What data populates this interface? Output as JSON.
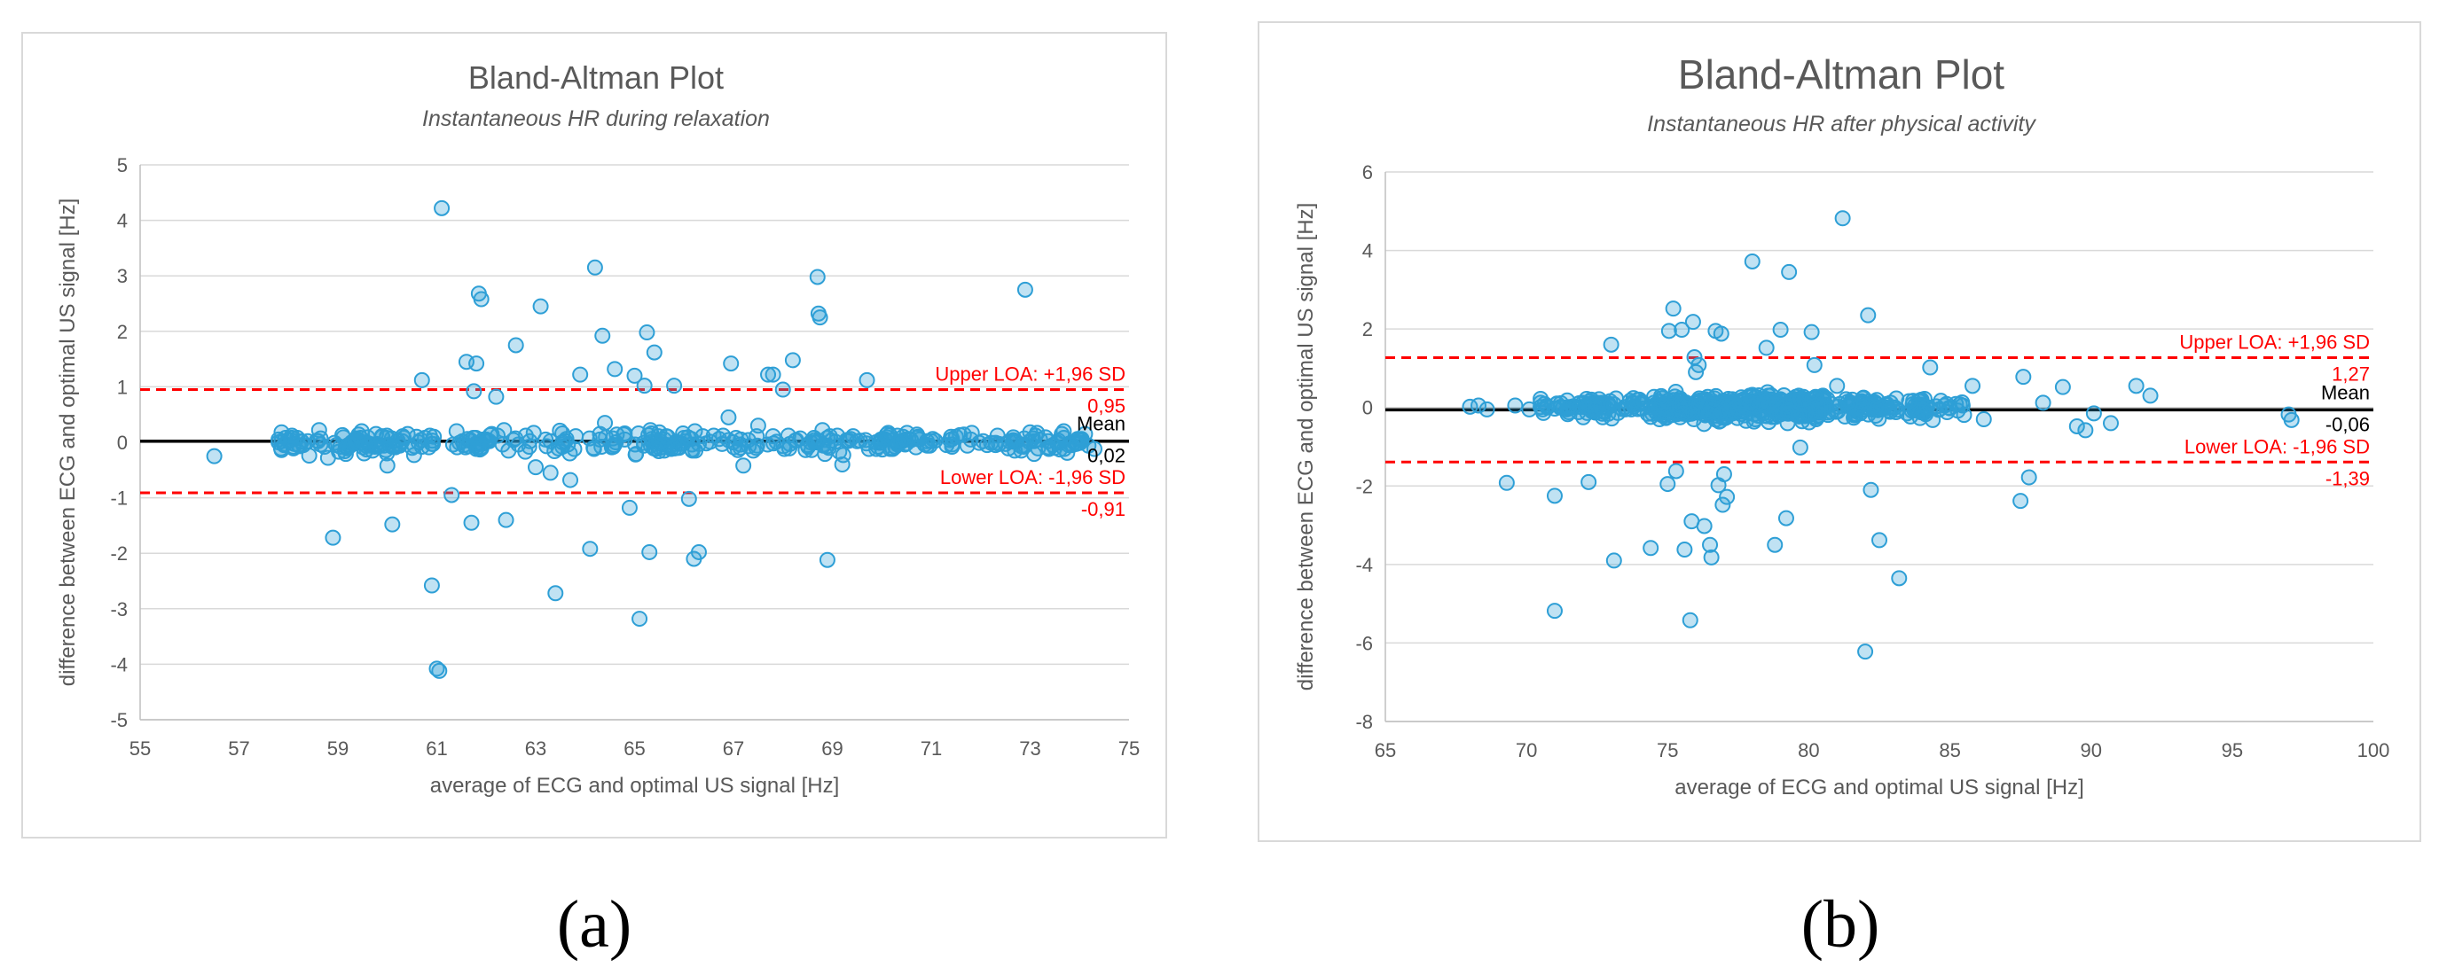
{
  "figure": {
    "caption_a": "(a)",
    "caption_b": "(b)"
  },
  "chart_data": [
    {
      "type": "scatter",
      "title": "Bland-Altman Plot",
      "subtitle": "Instantaneous HR during relaxation",
      "xlabel": "average of ECG and optimal US signal [Hz]",
      "ylabel": "difference between ECG and optimal US signal [Hz]",
      "xlim": [
        55,
        75
      ],
      "ylim": [
        -5,
        5
      ],
      "xticks": [
        55,
        57,
        59,
        61,
        63,
        65,
        67,
        69,
        71,
        73,
        75
      ],
      "yticks": [
        -5,
        -4,
        -3,
        -2,
        -1,
        0,
        1,
        2,
        3,
        4,
        5
      ],
      "grid": "horizontal",
      "point_color": "#2e9fd6",
      "mean_color": "#000000",
      "loa_color": "#ff0000",
      "lines": {
        "upper_label": "Upper LOA: +1,96 SD",
        "upper_value_label": "0,95",
        "upper": 0.95,
        "mean_label": "Mean",
        "mean_value_label": "0,02",
        "mean": 0.02,
        "lower_label": "Lower LOA: -1,96 SD",
        "lower_value_label": "-0,91",
        "lower": -0.91
      },
      "points": [
        [
          56.5,
          -0.25
        ],
        [
          57.8,
          0.05
        ],
        [
          58.3,
          -0.05
        ],
        [
          58.6,
          0.02
        ],
        [
          58.8,
          -0.28
        ],
        [
          58.9,
          -1.72
        ],
        [
          59.2,
          -0.1
        ],
        [
          59.4,
          0.05
        ],
        [
          59.7,
          -0.15
        ],
        [
          59.9,
          0.1
        ],
        [
          60.0,
          -0.42
        ],
        [
          60.1,
          -1.48
        ],
        [
          60.3,
          0.02
        ],
        [
          60.5,
          -0.1
        ],
        [
          60.7,
          1.12
        ],
        [
          60.9,
          -2.58
        ],
        [
          61.0,
          -4.08
        ],
        [
          61.05,
          -4.12
        ],
        [
          61.1,
          4.22
        ],
        [
          61.3,
          -0.95
        ],
        [
          61.4,
          0.2
        ],
        [
          61.6,
          1.45
        ],
        [
          61.7,
          -1.45
        ],
        [
          61.75,
          0.92
        ],
        [
          61.8,
          1.42
        ],
        [
          61.85,
          2.68
        ],
        [
          61.9,
          2.58
        ],
        [
          62.0,
          0.05
        ],
        [
          62.2,
          0.82
        ],
        [
          62.4,
          -1.4
        ],
        [
          62.6,
          1.75
        ],
        [
          62.8,
          0.12
        ],
        [
          63.0,
          -0.45
        ],
        [
          63.1,
          2.45
        ],
        [
          63.2,
          0.05
        ],
        [
          63.3,
          -0.55
        ],
        [
          63.4,
          -2.72
        ],
        [
          63.6,
          0.02
        ],
        [
          63.7,
          -0.68
        ],
        [
          63.9,
          1.22
        ],
        [
          64.1,
          -1.92
        ],
        [
          64.2,
          3.15
        ],
        [
          64.35,
          1.92
        ],
        [
          64.4,
          0.35
        ],
        [
          64.6,
          1.32
        ],
        [
          64.8,
          0.05
        ],
        [
          64.9,
          -1.18
        ],
        [
          65.0,
          1.2
        ],
        [
          65.1,
          -3.18
        ],
        [
          65.2,
          1.02
        ],
        [
          65.25,
          1.98
        ],
        [
          65.3,
          -1.98
        ],
        [
          65.4,
          1.62
        ],
        [
          65.6,
          -0.15
        ],
        [
          65.8,
          1.02
        ],
        [
          66.0,
          0.08
        ],
        [
          66.1,
          -1.02
        ],
        [
          66.2,
          -2.1
        ],
        [
          66.3,
          -1.98
        ],
        [
          66.6,
          0.12
        ],
        [
          66.9,
          0.45
        ],
        [
          66.95,
          1.42
        ],
        [
          67.2,
          -0.42
        ],
        [
          67.5,
          0.3
        ],
        [
          67.7,
          1.22
        ],
        [
          67.8,
          1.22
        ],
        [
          68.0,
          0.95
        ],
        [
          68.2,
          1.48
        ],
        [
          68.5,
          -0.05
        ],
        [
          68.7,
          2.98
        ],
        [
          68.72,
          2.32
        ],
        [
          68.75,
          2.25
        ],
        [
          68.9,
          -2.12
        ],
        [
          69.1,
          0.12
        ],
        [
          69.2,
          -0.4
        ],
        [
          69.5,
          0.02
        ],
        [
          69.7,
          1.12
        ],
        [
          70.0,
          0.05
        ],
        [
          70.5,
          -0.02
        ],
        [
          71.0,
          0.02
        ],
        [
          71.5,
          0.1
        ],
        [
          71.8,
          0.05
        ],
        [
          72.3,
          -0.05
        ],
        [
          72.9,
          2.75
        ],
        [
          73.0,
          0.18
        ],
        [
          73.2,
          0.05
        ],
        [
          73.5,
          -0.1
        ],
        [
          73.8,
          -0.02
        ],
        [
          74.0,
          0.05
        ],
        [
          74.3,
          -0.12
        ]
      ]
    },
    {
      "type": "scatter",
      "title": "Bland-Altman Plot",
      "subtitle": "Instantaneous HR after physical activity",
      "xlabel": "average of ECG and optimal US signal [Hz]",
      "ylabel": "difference between ECG and optimal US signal [Hz]",
      "xlim": [
        65,
        100
      ],
      "ylim": [
        -8,
        6
      ],
      "xticks": [
        65,
        70,
        75,
        80,
        85,
        90,
        95,
        100
      ],
      "yticks": [
        -8,
        -6,
        -4,
        -2,
        0,
        2,
        4,
        6
      ],
      "grid": "horizontal",
      "point_color": "#2e9fd6",
      "mean_color": "#000000",
      "loa_color": "#ff0000",
      "lines": {
        "upper_label": "Upper LOA: +1,96 SD",
        "upper_value_label": "1,27",
        "upper": 1.27,
        "mean_label": "Mean",
        "mean_value_label": "-0,06",
        "mean": -0.06,
        "lower_label": "Lower LOA: -1,96 SD",
        "lower_value_label": "-1,39",
        "lower": -1.39
      },
      "points": [
        [
          68.0,
          0.02
        ],
        [
          68.3,
          0.05
        ],
        [
          68.6,
          -0.05
        ],
        [
          69.3,
          -1.92
        ],
        [
          69.6,
          0.05
        ],
        [
          70.1,
          -0.05
        ],
        [
          70.5,
          0.12
        ],
        [
          71.0,
          -2.25
        ],
        [
          71.0,
          -5.18
        ],
        [
          71.5,
          -0.02
        ],
        [
          72.2,
          -1.9
        ],
        [
          72.6,
          0.1
        ],
        [
          73.0,
          1.6
        ],
        [
          73.1,
          -3.9
        ],
        [
          73.5,
          -0.05
        ],
        [
          74.0,
          0.2
        ],
        [
          74.4,
          -3.58
        ],
        [
          74.8,
          0.05
        ],
        [
          75.0,
          -1.95
        ],
        [
          75.05,
          1.95
        ],
        [
          75.2,
          2.52
        ],
        [
          75.3,
          -1.62
        ],
        [
          75.5,
          1.98
        ],
        [
          75.6,
          -3.62
        ],
        [
          75.8,
          -5.42
        ],
        [
          75.85,
          -2.9
        ],
        [
          75.9,
          2.18
        ],
        [
          75.95,
          1.28
        ],
        [
          76.0,
          0.9
        ],
        [
          76.1,
          1.08
        ],
        [
          76.3,
          -3.02
        ],
        [
          76.5,
          -3.5
        ],
        [
          76.55,
          -3.82
        ],
        [
          76.7,
          1.95
        ],
        [
          76.8,
          -1.98
        ],
        [
          76.9,
          1.88
        ],
        [
          76.95,
          -2.48
        ],
        [
          77.0,
          -1.7
        ],
        [
          77.1,
          -2.28
        ],
        [
          77.4,
          0.05
        ],
        [
          77.6,
          -0.1
        ],
        [
          78.0,
          3.72
        ],
        [
          78.1,
          -0.3
        ],
        [
          78.5,
          1.52
        ],
        [
          78.8,
          -3.5
        ],
        [
          79.0,
          1.98
        ],
        [
          79.2,
          -2.82
        ],
        [
          79.3,
          3.45
        ],
        [
          79.7,
          -1.02
        ],
        [
          79.9,
          -0.05
        ],
        [
          80.1,
          1.92
        ],
        [
          80.2,
          1.08
        ],
        [
          80.5,
          0.3
        ],
        [
          81.0,
          0.55
        ],
        [
          81.2,
          4.82
        ],
        [
          81.5,
          0.1
        ],
        [
          82.0,
          -6.22
        ],
        [
          82.1,
          2.35
        ],
        [
          82.2,
          -2.1
        ],
        [
          82.5,
          -3.38
        ],
        [
          83.2,
          -4.35
        ],
        [
          84.1,
          0.22
        ],
        [
          84.3,
          1.02
        ],
        [
          85.0,
          -0.02
        ],
        [
          85.8,
          0.55
        ],
        [
          86.2,
          -0.3
        ],
        [
          87.5,
          -2.38
        ],
        [
          87.6,
          0.78
        ],
        [
          87.8,
          -1.78
        ],
        [
          88.3,
          0.12
        ],
        [
          89.0,
          0.52
        ],
        [
          89.5,
          -0.48
        ],
        [
          89.8,
          -0.58
        ],
        [
          90.1,
          -0.15
        ],
        [
          90.7,
          -0.4
        ],
        [
          91.6,
          0.55
        ],
        [
          92.1,
          0.3
        ],
        [
          97.0,
          -0.18
        ],
        [
          97.1,
          -0.32
        ]
      ],
      "points_extra": []
    }
  ]
}
